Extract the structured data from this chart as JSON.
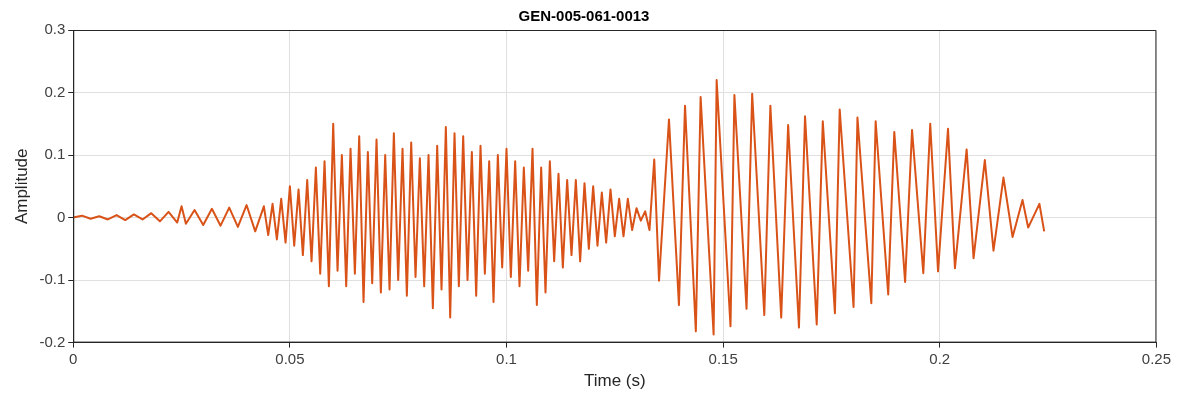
{
  "chart_data": {
    "type": "line",
    "title": "GEN-005-061-0013",
    "xlabel": "Time (s)",
    "ylabel": "Amplitude",
    "xlim": [
      0,
      0.25
    ],
    "xticks": [
      0,
      0.05,
      0.1,
      0.15,
      0.2,
      0.25
    ],
    "ylim": [
      -0.2,
      0.3
    ],
    "yticks": [
      -0.2,
      -0.1,
      0,
      0.1,
      0.2,
      0.3
    ],
    "grid": true,
    "legend": false,
    "marker": "none",
    "line_style": "solid",
    "series": [
      {
        "color": "#d95319",
        "x": [
          0,
          0.002,
          0.004,
          0.006,
          0.008,
          0.01,
          0.012,
          0.014,
          0.016,
          0.018,
          0.02,
          0.022,
          0.024,
          0.025,
          0.026,
          0.028,
          0.03,
          0.032,
          0.034,
          0.036,
          0.038,
          0.04,
          0.042,
          0.044,
          0.045,
          0.046,
          0.047,
          0.048,
          0.049,
          0.05,
          0.051,
          0.052,
          0.053,
          0.054,
          0.055,
          0.056,
          0.057,
          0.058,
          0.059,
          0.06,
          0.061,
          0.062,
          0.063,
          0.064,
          0.065,
          0.066,
          0.067,
          0.068,
          0.069,
          0.07,
          0.071,
          0.072,
          0.073,
          0.074,
          0.075,
          0.076,
          0.077,
          0.078,
          0.079,
          0.08,
          0.081,
          0.082,
          0.083,
          0.084,
          0.085,
          0.086,
          0.087,
          0.088,
          0.089,
          0.09,
          0.091,
          0.092,
          0.093,
          0.094,
          0.095,
          0.096,
          0.097,
          0.098,
          0.099,
          0.1,
          0.101,
          0.102,
          0.103,
          0.104,
          0.105,
          0.106,
          0.107,
          0.108,
          0.109,
          0.11,
          0.111,
          0.112,
          0.113,
          0.114,
          0.115,
          0.116,
          0.117,
          0.118,
          0.119,
          0.12,
          0.121,
          0.122,
          0.123,
          0.124,
          0.125,
          0.126,
          0.127,
          0.128,
          0.129,
          0.13,
          0.131,
          0.132,
          0.133,
          0.1341,
          0.1352,
          0.1375,
          0.1398,
          0.1412,
          0.1437,
          0.1448,
          0.1478,
          0.1485,
          0.1517,
          0.1526,
          0.1554,
          0.1567,
          0.1595,
          0.1609,
          0.1634,
          0.165,
          0.1675,
          0.1689,
          0.1716,
          0.173,
          0.1758,
          0.1769,
          0.1801,
          0.181,
          0.1842,
          0.1852,
          0.1881,
          0.1895,
          0.192,
          0.1936,
          0.1962,
          0.1978,
          0.1996,
          0.2019,
          0.2035,
          0.2062,
          0.2078,
          0.2104,
          0.2124,
          0.2147,
          0.2168,
          0.2191,
          0.2204,
          0.223,
          0.2241
        ],
        "values": [
          0,
          0.003,
          -0.002,
          0.002,
          -0.003,
          0.004,
          -0.004,
          0.005,
          -0.003,
          0.007,
          -0.006,
          0.009,
          -0.008,
          0.018,
          -0.01,
          0.012,
          -0.012,
          0.014,
          -0.013,
          0.016,
          -0.015,
          0.02,
          -0.022,
          0.018,
          -0.028,
          0.022,
          -0.035,
          0.03,
          -0.04,
          0.05,
          -0.045,
          0.045,
          -0.06,
          0.06,
          -0.07,
          0.08,
          -0.09,
          0.09,
          -0.11,
          0.15,
          -0.085,
          0.1,
          -0.11,
          0.11,
          -0.09,
          0.13,
          -0.135,
          0.105,
          -0.105,
          0.125,
          -0.12,
          0.1,
          -0.115,
          0.135,
          -0.1,
          0.11,
          -0.125,
          0.12,
          -0.095,
          0.095,
          -0.11,
          0.1,
          -0.145,
          0.115,
          -0.115,
          0.145,
          -0.16,
          0.135,
          -0.11,
          0.13,
          -0.1,
          0.105,
          -0.125,
          0.115,
          -0.09,
          0.09,
          -0.135,
          0.1,
          -0.08,
          0.11,
          -0.095,
          0.09,
          -0.11,
          0.08,
          -0.085,
          0.11,
          -0.14,
          0.08,
          -0.12,
          0.09,
          -0.07,
          0.07,
          -0.08,
          0.06,
          -0.06,
          0.06,
          -0.07,
          0.055,
          -0.05,
          0.05,
          -0.045,
          0.04,
          -0.04,
          0.045,
          -0.03,
          0.03,
          -0.03,
          0.03,
          -0.02,
          0.015,
          -0.005,
          0.01,
          -0.02,
          0.093,
          -0.101,
          0.157,
          -0.14,
          0.179,
          -0.182,
          0.193,
          -0.187,
          0.22,
          -0.174,
          0.196,
          -0.146,
          0.198,
          -0.156,
          0.179,
          -0.16,
          0.148,
          -0.176,
          0.162,
          -0.171,
          0.154,
          -0.153,
          0.173,
          -0.143,
          0.16,
          -0.137,
          0.154,
          -0.123,
          0.137,
          -0.103,
          0.14,
          -0.089,
          0.15,
          -0.086,
          0.142,
          -0.081,
          0.109,
          -0.065,
          0.092,
          -0.053,
          0.064,
          -0.031,
          0.028,
          -0.016,
          0.022,
          -0.022
        ]
      }
    ]
  }
}
